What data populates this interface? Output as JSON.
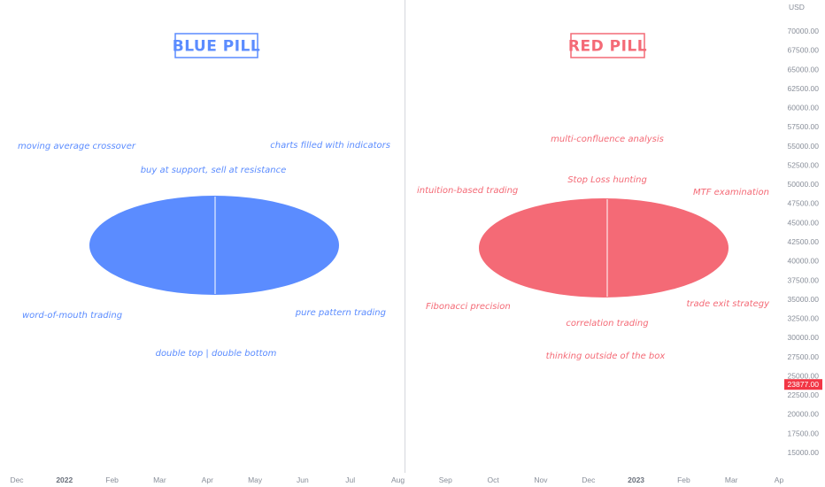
{
  "colors": {
    "blue": "#5b8cff",
    "red": "#f46a76",
    "divider": "#d5d7dc",
    "axis_text": "#888e99",
    "price_badge": "#f23645"
  },
  "blue_pill": {
    "title": "BLUE PILL",
    "labels": [
      "moving average crossover",
      "charts filled with indicators",
      "buy at support, sell at resistance",
      "word-of-mouth trading",
      "pure pattern trading",
      "double top | double bottom"
    ]
  },
  "red_pill": {
    "title": "RED PILL",
    "labels": [
      "multi-confluence analysis",
      "Stop Loss hunting",
      "intuition-based trading",
      "MTF examination",
      "Fibonacci precision",
      "trade exit strategy",
      "correlation trading",
      "thinking outside of the box"
    ]
  },
  "price_axis": {
    "currency": "USD",
    "ticks": [
      "70000.00",
      "67500.00",
      "65000.00",
      "62500.00",
      "60000.00",
      "57500.00",
      "55000.00",
      "52500.00",
      "50000.00",
      "47500.00",
      "45000.00",
      "42500.00",
      "40000.00",
      "37500.00",
      "35000.00",
      "32500.00",
      "30000.00",
      "27500.00",
      "25000.00",
      "22500.00",
      "20000.00",
      "17500.00",
      "15000.00"
    ],
    "current_price": "23877.00"
  },
  "time_axis": {
    "ticks": [
      {
        "label": "Dec",
        "bold": false
      },
      {
        "label": "2022",
        "bold": true
      },
      {
        "label": "Feb",
        "bold": false
      },
      {
        "label": "Mar",
        "bold": false
      },
      {
        "label": "Apr",
        "bold": false
      },
      {
        "label": "May",
        "bold": false
      },
      {
        "label": "Jun",
        "bold": false
      },
      {
        "label": "Jul",
        "bold": false
      },
      {
        "label": "Aug",
        "bold": false
      },
      {
        "label": "Sep",
        "bold": false
      },
      {
        "label": "Oct",
        "bold": false
      },
      {
        "label": "Nov",
        "bold": false
      },
      {
        "label": "Dec",
        "bold": false
      },
      {
        "label": "2023",
        "bold": true
      },
      {
        "label": "Feb",
        "bold": false
      },
      {
        "label": "Mar",
        "bold": false
      },
      {
        "label": "Ap",
        "bold": false
      }
    ]
  }
}
